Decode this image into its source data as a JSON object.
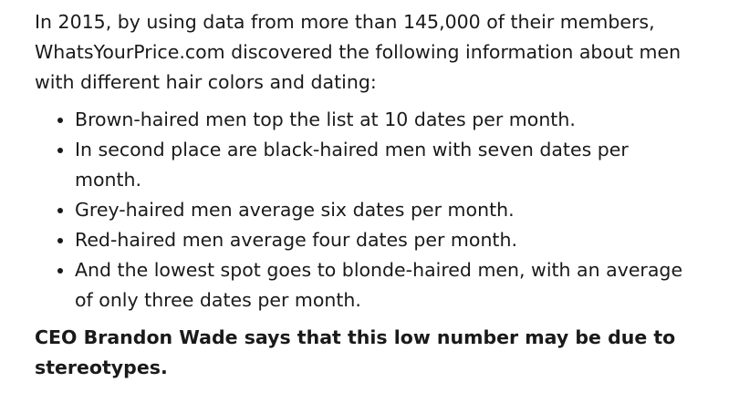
{
  "intro": "In 2015, by using data from more than 145,000 of their members, WhatsYourPrice.com discovered the following information about men with different hair colors and dating:",
  "bullets": [
    "Brown-haired men top the list at 10 dates per month.",
    "In second place are black-haired men with seven dates per month.",
    "Grey-haired men average six dates per month.",
    "Red-haired men average four dates per month.",
    "And the lowest spot goes to blonde-haired men, with an average of only three dates per month."
  ],
  "closing": "CEO Brandon Wade says that this low number may be due to stereotypes."
}
